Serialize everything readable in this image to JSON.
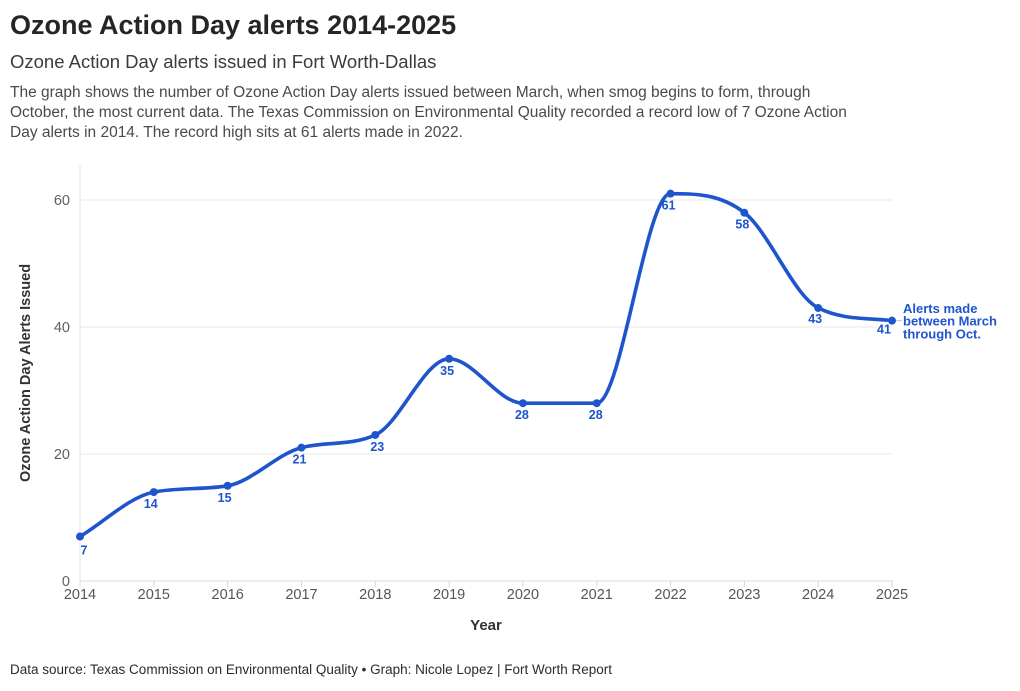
{
  "header": {
    "title": "Ozone Action Day alerts 2014-2025",
    "subtitle": "Ozone Action Day alerts issued in Fort Worth-Dallas",
    "description_lines": [
      "The graph shows the number of Ozone Action Day alerts issued between March, when smog begins to form, through",
      "October, the most current data. The Texas Commission on Environmental Quality recorded a record low of 7 Ozone Action",
      "Day alerts in 2014. The record high sits at 61 alerts made in 2022."
    ]
  },
  "footer": {
    "text": "Data source: Texas Commission on Environmental Quality • Graph: Nicole Lopez | Fort Worth Report"
  },
  "chart_data": {
    "type": "line",
    "title": "Ozone Action Day alerts 2014-2025",
    "categories": [
      "2014",
      "2015",
      "2016",
      "2017",
      "2018",
      "2019",
      "2020",
      "2021",
      "2022",
      "2023",
      "2024",
      "2025"
    ],
    "values": [
      7,
      14,
      15,
      21,
      23,
      35,
      28,
      28,
      61,
      58,
      43,
      41
    ],
    "xlabel": "Year",
    "ylabel": "Ozone Action Day Alerts Issued",
    "yticks": [
      0,
      20,
      40,
      60
    ],
    "ylim": [
      0,
      66
    ],
    "grid": "horizontal",
    "legend": "none",
    "line_color": "#1e55cd",
    "label_color": "#1e55cd",
    "tick_color": "#606060",
    "annotation": {
      "text": "Alerts made between March through Oct.",
      "lines": [
        "Alerts made",
        "between March",
        "through Oct."
      ],
      "color": "#1e55cd"
    }
  }
}
